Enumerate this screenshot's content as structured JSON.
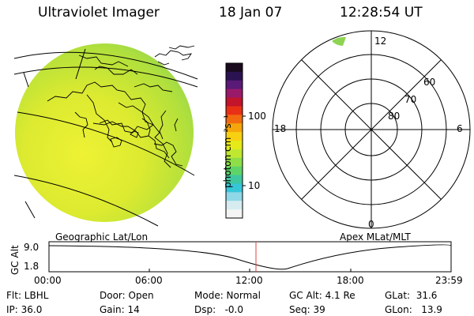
{
  "header": {
    "title": "Ultraviolet Imager",
    "date": "18 Jan 07",
    "time": "12:28:54 UT"
  },
  "colorbar": {
    "unit_label": "photon cm⁻²s⁻¹",
    "tick_100": "100",
    "tick_10": "10",
    "colors": [
      "#1a0a1e",
      "#2b1250",
      "#5a1a78",
      "#9a1a6a",
      "#c2142a",
      "#e83014",
      "#f26a10",
      "#f5a60a",
      "#f7d012",
      "#e6ea18",
      "#c0e830",
      "#8ede48",
      "#5ed468",
      "#3fc8a0",
      "#36c6d8",
      "#8fd8e8",
      "#d6ecf0",
      "#f4f4f4"
    ]
  },
  "polar": {
    "labels": {
      "lat_60": "60",
      "lat_70": "70",
      "lat_80": "80",
      "mlt_12": "12",
      "mlt_18": "18",
      "mlt_6": "6",
      "mlt_0": "0"
    }
  },
  "timeline": {
    "geo_label": "Geographic Lat/Lon",
    "apex_label": "Apex MLat/MLT",
    "axis_title": "GC Alt",
    "y_top": "9.0",
    "y_bottom": "1.8",
    "x_ticks": [
      "00:00",
      "06:00",
      "12:00",
      "18:00",
      "23:59"
    ],
    "current_time": "12:28",
    "marker_color": "#e04040"
  },
  "info": {
    "flt": "Flt: LBHL",
    "ip": "IP: 36.0",
    "door": "Door: Open",
    "gain": "Gain: 14",
    "mode": "Mode: Normal",
    "dsp": "Dsp:   -0.0",
    "gcalt": "GC Alt: 4.1 Re",
    "seq": "Seq: 39",
    "glat": "GLat:  31.6",
    "glon": "GLon:   13.9"
  }
}
